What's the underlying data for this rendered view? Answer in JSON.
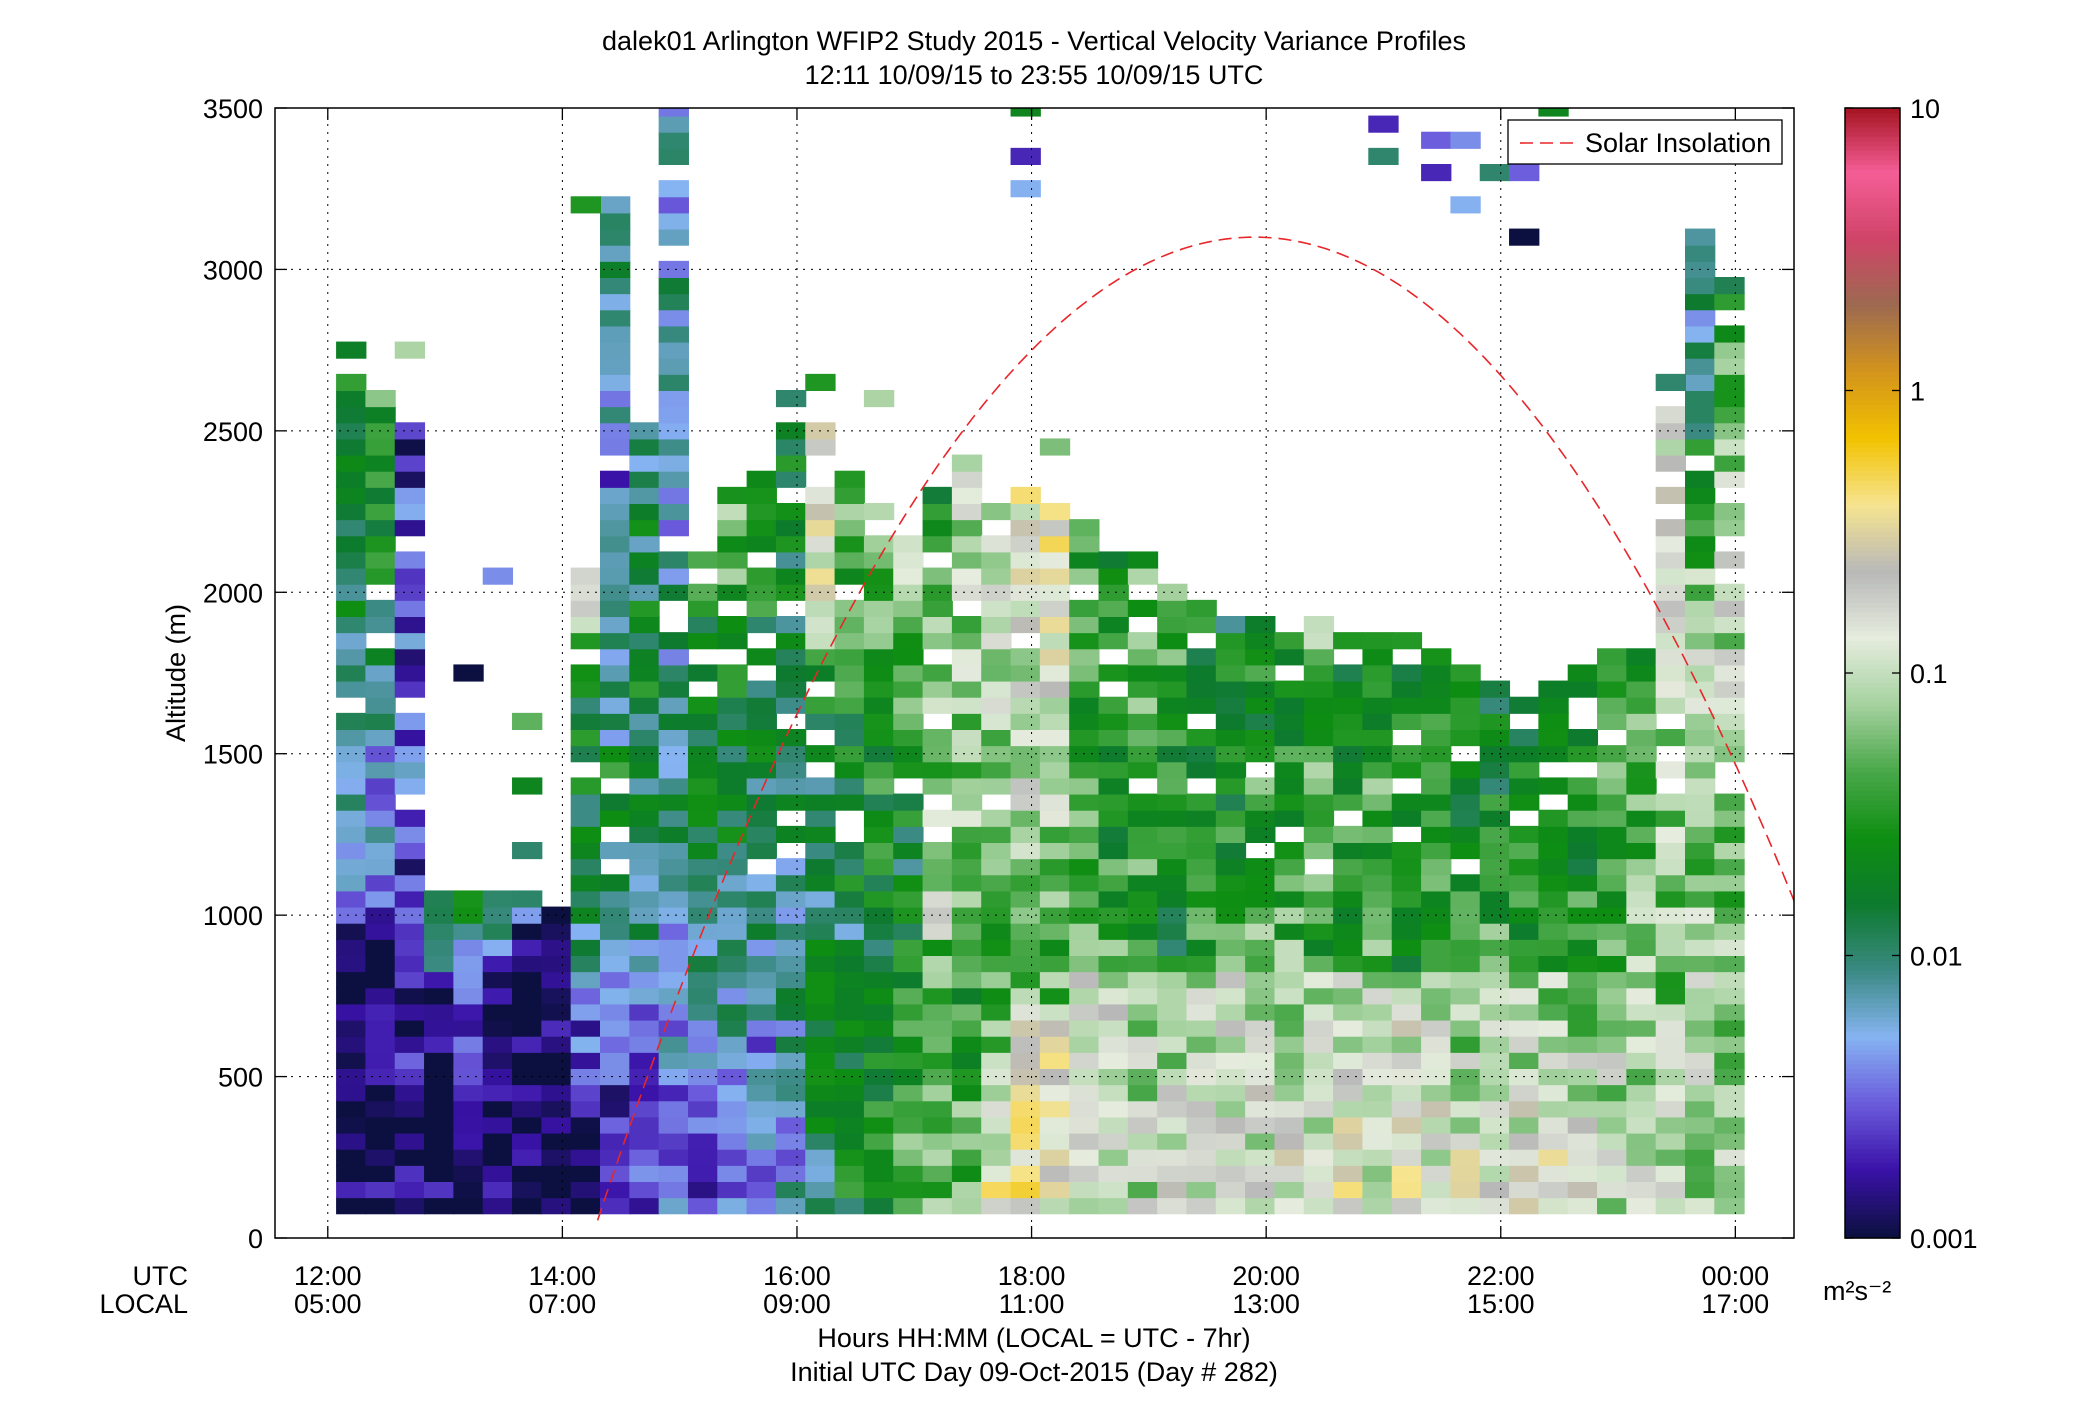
{
  "chart_data": {
    "type": "heatmap",
    "title": "dalek01 Arlington WFIP2 Study 2015 - Vertical Velocity Variance Profiles",
    "subtitle": "12:11 10/09/15 to 23:55 10/09/15  UTC",
    "ylabel": "Altitude (m)",
    "xlabel": "Hours HH:MM  (LOCAL = UTC - 7hr)",
    "xlabel2": "Initial UTC Day 09-Oct-2015 (Day # 282)",
    "x_row_labels": [
      "UTC",
      "LOCAL"
    ],
    "x_ticks_utc": [
      "12:00",
      "14:00",
      "16:00",
      "18:00",
      "20:00",
      "22:00",
      "00:00"
    ],
    "x_ticks_local": [
      "05:00",
      "07:00",
      "09:00",
      "11:00",
      "13:00",
      "15:00",
      "17:00"
    ],
    "x_tick_hours": [
      12,
      14,
      16,
      18,
      20,
      22,
      24
    ],
    "xlim": [
      11.55,
      24.5
    ],
    "y_ticks": [
      "0",
      "500",
      "1000",
      "1500",
      "2000",
      "2500",
      "3000",
      "3500"
    ],
    "y_tick_values": [
      0,
      500,
      1000,
      1500,
      2000,
      2500,
      3000,
      3500
    ],
    "ylim": [
      0,
      3500
    ],
    "grid": true,
    "colorbar": {
      "scale": "log",
      "range": [
        0.001,
        10
      ],
      "tick_labels": [
        "0.001",
        "0.01",
        "0.1",
        "1",
        "10"
      ],
      "tick_values": [
        0.001,
        0.01,
        0.1,
        1,
        10
      ],
      "units": "m²s⁻²",
      "colors": [
        "#0c1040",
        "#3a12a8",
        "#6b5cdc",
        "#86b4f2",
        "#3a8a82",
        "#0d7a2e",
        "#0e8e12",
        "#4aa84a",
        "#a6d2a0",
        "#e6ecde",
        "#b8b8b8",
        "#f6e490",
        "#f2c200",
        "#d4941c",
        "#9c6a50",
        "#d04468",
        "#f45e96",
        "#a3121e"
      ]
    },
    "legend": {
      "entries": [
        "Solar Insolation"
      ],
      "placement": "top-right"
    },
    "solar_insolation_curve": {
      "peak_hour_utc": 19.9,
      "peak_altitude_m": 3100,
      "rise_hour_utc": 14.3,
      "set_hour_utc": 25.6
    },
    "grid_spec": {
      "hour_start": 12.2,
      "hour_end": 23.95,
      "hour_step": 0.25,
      "alt_start_m": 100,
      "alt_step_m": 50
    },
    "profiles": [
      {
        "t": 12.2,
        "top": 2750,
        "grads": [
          [
            0.001,
            0.001,
            900
          ],
          [
            0.002,
            0.008,
            1500
          ],
          [
            0.01,
            0.02,
            2700
          ]
        ]
      },
      {
        "t": 12.45,
        "top": 2600,
        "grads": [
          [
            0.001,
            0.001,
            900
          ],
          [
            0.003,
            0.006,
            1500
          ],
          [
            0.01,
            0.03,
            2600
          ]
        ]
      },
      {
        "t": 12.7,
        "top": 2500,
        "grads": [
          [
            0.001,
            0.002,
            850
          ],
          [
            0.002,
            0.004,
            1700
          ],
          [
            0.003,
            0.002,
            2500
          ]
        ]
      },
      {
        "t": 12.95,
        "top": 1050,
        "grads": [
          [
            0.001,
            0.001,
            800
          ],
          [
            0.003,
            0.015,
            1050
          ]
        ]
      },
      {
        "t": 13.2,
        "top": 1050,
        "grads": [
          [
            0.001,
            0.002,
            800
          ],
          [
            0.004,
            0.02,
            1050
          ]
        ]
      },
      {
        "t": 13.45,
        "top": 1050,
        "grads": [
          [
            0.001,
            0.001,
            850
          ],
          [
            0.006,
            0.012,
            1050
          ]
        ]
      },
      {
        "t": 13.7,
        "top": 1050,
        "grads": [
          [
            0.001,
            0.001,
            950
          ],
          [
            0.01,
            0.005,
            1050
          ]
        ]
      },
      {
        "t": 13.95,
        "top": 1000,
        "grads": [
          [
            0.001,
            0.001,
            950
          ]
        ]
      },
      {
        "t": 14.2,
        "top": 2050,
        "grads": [
          [
            0.001,
            0.004,
            800
          ],
          [
            0.008,
            0.02,
            1600
          ],
          [
            0.015,
            0.2,
            2050
          ]
        ]
      },
      {
        "t": 14.45,
        "top": 3200,
        "grads": [
          [
            0.001,
            0.006,
            800
          ],
          [
            0.01,
            0.02,
            1500
          ],
          [
            0.01,
            0.003,
            2500
          ],
          [
            0.005,
            0.01,
            3200
          ]
        ]
      },
      {
        "t": 14.7,
        "top": 2500,
        "grads": [
          [
            0.002,
            0.005,
            800
          ],
          [
            0.008,
            0.015,
            1600
          ],
          [
            0.02,
            0.01,
            2500
          ]
        ]
      },
      {
        "t": 14.95,
        "top": 3500,
        "grads": [
          [
            0.003,
            0.006,
            900
          ],
          [
            0.006,
            0.012,
            1600
          ],
          [
            0.01,
            0.004,
            2500
          ],
          [
            0.008,
            0.005,
            3500
          ]
        ]
      },
      {
        "t": 15.2,
        "top": 2100,
        "grads": [
          [
            0.003,
            0.008,
            900
          ],
          [
            0.008,
            0.03,
            2100
          ]
        ]
      },
      {
        "t": 15.45,
        "top": 2300,
        "grads": [
          [
            0.004,
            0.01,
            900
          ],
          [
            0.01,
            0.05,
            2300
          ]
        ]
      },
      {
        "t": 15.7,
        "top": 2400,
        "grads": [
          [
            0.004,
            0.005,
            900
          ],
          [
            0.01,
            0.03,
            2400
          ]
        ]
      },
      {
        "t": 15.95,
        "top": 2500,
        "grads": [
          [
            0.005,
            0.01,
            900
          ],
          [
            0.008,
            0.02,
            2500
          ]
        ]
      },
      {
        "t": 16.2,
        "top": 2500,
        "grads": [
          [
            0.01,
            0.02,
            900
          ],
          [
            0.008,
            0.02,
            1800
          ],
          [
            0.15,
            0.2,
            2500
          ]
        ]
      },
      {
        "t": 16.45,
        "top": 2350,
        "grads": [
          [
            0.02,
            0.01,
            1000
          ],
          [
            0.015,
            0.04,
            2350
          ]
        ]
      },
      {
        "t": 16.7,
        "top": 2250,
        "grads": [
          [
            0.03,
            0.015,
            1000
          ],
          [
            0.02,
            0.05,
            2250
          ]
        ]
      },
      {
        "t": 16.95,
        "top": 2150,
        "grads": [
          [
            0.04,
            0.02,
            1100
          ],
          [
            0.015,
            0.08,
            2150
          ]
        ]
      },
      {
        "t": 17.2,
        "top": 2300,
        "grads": [
          [
            0.05,
            0.04,
            900
          ],
          [
            0.1,
            0.03,
            2300
          ]
        ]
      },
      {
        "t": 17.45,
        "top": 2400,
        "grads": [
          [
            0.06,
            0.03,
            800
          ],
          [
            0.05,
            0.08,
            2400
          ]
        ]
      },
      {
        "t": 17.7,
        "top": 2250,
        "grads": [
          [
            0.25,
            0.05,
            700
          ],
          [
            0.04,
            0.12,
            2250
          ]
        ]
      },
      {
        "t": 17.95,
        "top": 2300,
        "grads": [
          [
            0.3,
            0.15,
            700
          ],
          [
            0.05,
            0.2,
            2300
          ]
        ]
      },
      {
        "t": 18.2,
        "top": 2250,
        "grads": [
          [
            0.15,
            0.2,
            700
          ],
          [
            0.04,
            0.25,
            2250
          ]
        ]
      },
      {
        "t": 18.45,
        "top": 2200,
        "grads": [
          [
            0.1,
            0.15,
            800
          ],
          [
            0.05,
            0.03,
            2200
          ]
        ]
      },
      {
        "t": 18.7,
        "top": 2100,
        "grads": [
          [
            0.08,
            0.12,
            800
          ],
          [
            0.04,
            0.02,
            2100
          ]
        ]
      },
      {
        "t": 18.95,
        "top": 2100,
        "grads": [
          [
            0.1,
            0.08,
            800
          ],
          [
            0.03,
            0.05,
            2100
          ]
        ]
      },
      {
        "t": 19.2,
        "top": 2000,
        "grads": [
          [
            0.12,
            0.08,
            800
          ],
          [
            0.02,
            0.04,
            2000
          ]
        ]
      },
      {
        "t": 19.45,
        "top": 1950,
        "grads": [
          [
            0.15,
            0.1,
            800
          ],
          [
            0.03,
            0.02,
            1950
          ]
        ]
      },
      {
        "t": 19.7,
        "top": 1900,
        "grads": [
          [
            0.2,
            0.1,
            800
          ],
          [
            0.04,
            0.015,
            1900
          ]
        ]
      },
      {
        "t": 19.95,
        "top": 1900,
        "grads": [
          [
            0.12,
            0.1,
            800
          ],
          [
            0.06,
            0.02,
            1900
          ]
        ]
      },
      {
        "t": 20.2,
        "top": 1900,
        "grads": [
          [
            0.15,
            0.08,
            800
          ],
          [
            0.05,
            0.02,
            1900
          ]
        ]
      },
      {
        "t": 20.45,
        "top": 1900,
        "grads": [
          [
            0.12,
            0.08,
            800
          ],
          [
            0.03,
            0.05,
            1900
          ]
        ]
      },
      {
        "t": 20.7,
        "top": 1850,
        "grads": [
          [
            0.2,
            0.1,
            800
          ],
          [
            0.04,
            0.02,
            1850
          ]
        ]
      },
      {
        "t": 20.95,
        "top": 1850,
        "grads": [
          [
            0.15,
            0.08,
            800
          ],
          [
            0.05,
            0.03,
            1850
          ]
        ]
      },
      {
        "t": 21.2,
        "top": 1850,
        "grads": [
          [
            0.2,
            0.1,
            800
          ],
          [
            0.03,
            0.02,
            1850
          ]
        ]
      },
      {
        "t": 21.45,
        "top": 1800,
        "grads": [
          [
            0.15,
            0.08,
            800
          ],
          [
            0.04,
            0.02,
            1800
          ]
        ]
      },
      {
        "t": 21.7,
        "top": 1750,
        "grads": [
          [
            0.2,
            0.05,
            800
          ],
          [
            0.03,
            0.015,
            1750
          ]
        ]
      },
      {
        "t": 21.95,
        "top": 1700,
        "grads": [
          [
            0.2,
            0.06,
            800
          ],
          [
            0.04,
            0.015,
            1700
          ]
        ]
      },
      {
        "t": 22.2,
        "top": 1650,
        "grads": [
          [
            0.15,
            0.08,
            800
          ],
          [
            0.03,
            0.02,
            1650
          ]
        ]
      },
      {
        "t": 22.45,
        "top": 1700,
        "grads": [
          [
            0.2,
            0.07,
            800
          ],
          [
            0.04,
            0.015,
            1700
          ]
        ]
      },
      {
        "t": 22.7,
        "top": 1750,
        "grads": [
          [
            0.15,
            0.06,
            800
          ],
          [
            0.03,
            0.02,
            1750
          ]
        ]
      },
      {
        "t": 22.95,
        "top": 1800,
        "grads": [
          [
            0.1,
            0.08,
            800
          ],
          [
            0.05,
            0.03,
            1800
          ]
        ]
      },
      {
        "t": 23.2,
        "top": 1800,
        "grads": [
          [
            0.12,
            0.07,
            800
          ],
          [
            0.06,
            0.04,
            1800
          ]
        ]
      },
      {
        "t": 23.45,
        "top": 2550,
        "grads": [
          [
            0.1,
            0.06,
            800
          ],
          [
            0.05,
            0.1,
            2000
          ],
          [
            0.1,
            0.15,
            2550
          ]
        ]
      },
      {
        "t": 23.7,
        "top": 3100,
        "grads": [
          [
            0.08,
            0.1,
            800
          ],
          [
            0.06,
            0.08,
            1800
          ],
          [
            0.12,
            0.004,
            3100
          ]
        ]
      },
      {
        "t": 23.95,
        "top": 2950,
        "grads": [
          [
            0.1,
            0.06,
            800
          ],
          [
            0.05,
            0.1,
            2000
          ],
          [
            0.2,
            0.02,
            2950
          ]
        ]
      }
    ],
    "extra_cells": [
      {
        "t": 12.7,
        "alt": 2750,
        "v": 0.08
      },
      {
        "t": 13.45,
        "alt": 2050,
        "v": 0.004
      },
      {
        "t": 13.7,
        "alt": 1600,
        "v": 0.05
      },
      {
        "t": 13.7,
        "alt": 1400,
        "v": 0.02
      },
      {
        "t": 13.7,
        "alt": 1200,
        "v": 0.01
      },
      {
        "t": 13.2,
        "alt": 1750,
        "v": 0.001
      },
      {
        "t": 14.2,
        "alt": 3200,
        "v": 0.03
      },
      {
        "t": 17.95,
        "alt": 3500,
        "v": 0.02
      },
      {
        "t": 17.95,
        "alt": 3350,
        "v": 0.002
      },
      {
        "t": 17.95,
        "alt": 3250,
        "v": 0.005
      },
      {
        "t": 21.0,
        "alt": 3450,
        "v": 0.002
      },
      {
        "t": 21.0,
        "alt": 3350,
        "v": 0.01
      },
      {
        "t": 21.45,
        "alt": 3400,
        "v": 0.003
      },
      {
        "t": 21.45,
        "alt": 3300,
        "v": 0.002
      },
      {
        "t": 21.7,
        "alt": 3400,
        "v": 0.004
      },
      {
        "t": 21.7,
        "alt": 3200,
        "v": 0.005
      },
      {
        "t": 21.95,
        "alt": 3300,
        "v": 0.01
      },
      {
        "t": 22.2,
        "alt": 3300,
        "v": 0.003
      },
      {
        "t": 22.2,
        "alt": 3100,
        "v": 0.001
      },
      {
        "t": 22.45,
        "alt": 3500,
        "v": 0.02
      },
      {
        "t": 16.2,
        "alt": 2650,
        "v": 0.03
      },
      {
        "t": 16.7,
        "alt": 2600,
        "v": 0.08
      },
      {
        "t": 15.95,
        "alt": 2600,
        "v": 0.01
      },
      {
        "t": 23.45,
        "alt": 2650,
        "v": 0.01
      },
      {
        "t": 18.2,
        "alt": 2450,
        "v": 0.06
      }
    ]
  }
}
